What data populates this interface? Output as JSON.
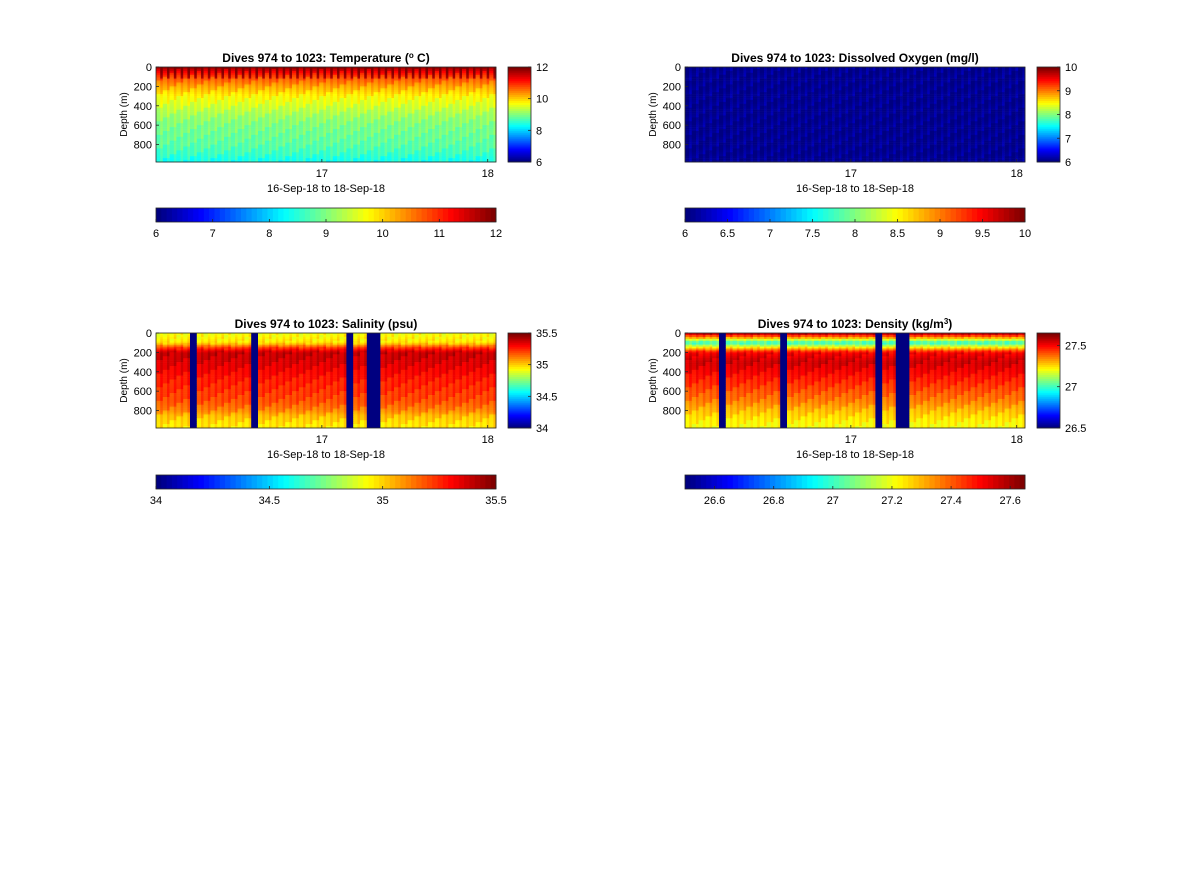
{
  "figure": {
    "panels": [
      {
        "key": "temperature",
        "title_parts": [
          "Dives 974 to 1023: Temperature (",
          "o",
          " C)"
        ],
        "title_sup_index": 1,
        "ylabel": "Depth (m)",
        "xlabel": "16-Sep-18 to 18-Sep-18",
        "yticks": [
          "0",
          "200",
          "400",
          "600",
          "800"
        ],
        "xticks": [
          "17",
          "18"
        ],
        "side_colorbar_ticks": [
          "12",
          "10",
          "8",
          "6"
        ],
        "bottom_colorbar_ticks": [
          "6",
          "7",
          "8",
          "9",
          "10",
          "11",
          "12"
        ]
      },
      {
        "key": "oxygen",
        "title_parts": [
          "Dives 974 to 1023: Dissolved Oxygen (mg/l)"
        ],
        "title_sup_index": -1,
        "ylabel": "Depth (m)",
        "xlabel": "16-Sep-18 to 18-Sep-18",
        "yticks": [
          "0",
          "200",
          "400",
          "600",
          "800"
        ],
        "xticks": [
          "17",
          "18"
        ],
        "side_colorbar_ticks": [
          "10",
          "9",
          "8",
          "7",
          "6"
        ],
        "bottom_colorbar_ticks": [
          "6",
          "6.5",
          "7",
          "7.5",
          "8",
          "8.5",
          "9",
          "9.5",
          "10"
        ]
      },
      {
        "key": "salinity",
        "title_parts": [
          "Dives 974 to 1023: Salinity (psu)"
        ],
        "title_sup_index": -1,
        "ylabel": "Depth (m)",
        "xlabel": "16-Sep-18 to 18-Sep-18",
        "yticks": [
          "0",
          "200",
          "400",
          "600",
          "800"
        ],
        "xticks": [
          "17",
          "18"
        ],
        "side_colorbar_ticks": [
          "35.5",
          "35",
          "34.5",
          "34"
        ],
        "bottom_colorbar_ticks": [
          "34",
          "34.5",
          "35",
          "35.5"
        ]
      },
      {
        "key": "density",
        "title_parts": [
          "Dives 974 to 1023: Density (kg/m",
          "3",
          ")"
        ],
        "title_sup_index": 1,
        "ylabel": "Depth (m)",
        "xlabel": "16-Sep-18 to 18-Sep-18",
        "yticks": [
          "0",
          "200",
          "400",
          "600",
          "800"
        ],
        "xticks": [
          "17",
          "18"
        ],
        "side_colorbar_ticks": [
          "27.5",
          "27",
          "26.5"
        ],
        "bottom_colorbar_ticks": [
          "26.6",
          "26.8",
          "27",
          "27.2",
          "27.4",
          "27.6"
        ]
      }
    ]
  },
  "chart_data": [
    {
      "type": "heatmap",
      "title": "Dives 974 to 1023: Temperature (o C)",
      "xlabel": "16-Sep-18 to 18-Sep-18",
      "ylabel": "Depth (m)",
      "colormap": "jet",
      "xlim": [
        16.0,
        18.05
      ],
      "ylim": [
        0,
        980
      ],
      "y_reversed": true,
      "clim": [
        6,
        12
      ],
      "dives": 50,
      "depth_profile": {
        "depth_m": [
          0,
          10,
          50,
          100,
          200,
          300,
          400,
          500,
          600,
          700,
          800,
          900,
          950
        ],
        "value": [
          12,
          11.8,
          11.3,
          10.8,
          10.2,
          9.7,
          9.4,
          9.1,
          8.9,
          8.8,
          8.7,
          8.5,
          8.3
        ]
      },
      "surface_gap_between_dives": {
        "depth_m": [
          0,
          120
        ],
        "value": [
          12.0,
          11.4
        ]
      },
      "missing_dives": []
    },
    {
      "type": "heatmap",
      "title": "Dives 974 to 1023: Dissolved Oxygen (mg/l)",
      "xlabel": "16-Sep-18 to 18-Sep-18",
      "ylabel": "Depth (m)",
      "colormap": "jet",
      "xlim": [
        16.0,
        18.05
      ],
      "ylim": [
        0,
        980
      ],
      "y_reversed": true,
      "clim": [
        6,
        10
      ],
      "dives": 50,
      "depth_profile": {
        "depth_m": [
          0,
          980
        ],
        "value": [
          6,
          6
        ]
      },
      "missing_dives": []
    },
    {
      "type": "heatmap",
      "title": "Dives 974 to 1023: Salinity (psu)",
      "xlabel": "16-Sep-18 to 18-Sep-18",
      "ylabel": "Depth (m)",
      "colormap": "jet",
      "xlim": [
        16.0,
        18.05
      ],
      "ylim": [
        0,
        980
      ],
      "y_reversed": true,
      "clim": [
        34,
        35.5
      ],
      "dives": 50,
      "depth_profile": {
        "depth_m": [
          0,
          100,
          150,
          200,
          300,
          400,
          500,
          600,
          700,
          800,
          850,
          900,
          950
        ],
        "value": [
          34.9,
          34.95,
          35.2,
          35.38,
          35.35,
          35.3,
          35.25,
          35.22,
          35.18,
          35.1,
          35.02,
          34.98,
          34.95
        ]
      },
      "missing_value": 34,
      "missing_dives": [
        5,
        14,
        28,
        31,
        32
      ]
    },
    {
      "type": "heatmap",
      "title": "Dives 974 to 1023: Density (kg/m3)",
      "xlabel": "16-Sep-18 to 18-Sep-18",
      "ylabel": "Depth (m)",
      "colormap": "jet",
      "xlim": [
        16.0,
        18.05
      ],
      "ylim": [
        0,
        980
      ],
      "y_reversed": true,
      "clim": [
        26.5,
        27.65
      ],
      "dives": 50,
      "depth_profile": {
        "depth_m": [
          0,
          50,
          100,
          200,
          300,
          400,
          500,
          600,
          700,
          800,
          900,
          950
        ],
        "value": [
          27.6,
          27.3,
          26.95,
          27.5,
          27.55,
          27.5,
          27.45,
          27.4,
          27.35,
          27.28,
          27.22,
          27.2
        ]
      },
      "missing_value": 26.5,
      "missing_dives": [
        5,
        14,
        28,
        31,
        32
      ]
    }
  ]
}
